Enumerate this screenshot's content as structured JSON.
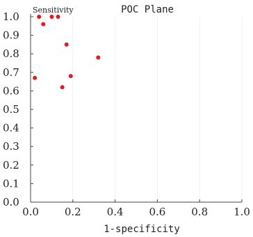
{
  "chart_data": {
    "type": "scatter",
    "title": "POC Plane",
    "xlabel": "1-specificity",
    "ylabel": "Sensitivity",
    "xlim": [
      0,
      1
    ],
    "ylim": [
      0,
      1
    ],
    "x_ticks": [
      "0.0",
      "0.2",
      "0.4",
      "0.6",
      "0.8",
      "1.0"
    ],
    "y_ticks": [
      "0.0",
      "0.1",
      "0.2",
      "0.3",
      "0.4",
      "0.5",
      "0.6",
      "0.7",
      "0.8",
      "0.9",
      "1.0"
    ],
    "grid": true,
    "point_color": "#e8191c",
    "points": [
      {
        "x": 0.04,
        "y": 1.0
      },
      {
        "x": 0.1,
        "y": 1.0
      },
      {
        "x": 0.13,
        "y": 1.0
      },
      {
        "x": 0.06,
        "y": 0.96
      },
      {
        "x": 0.17,
        "y": 0.85
      },
      {
        "x": 0.32,
        "y": 0.78
      },
      {
        "x": 0.02,
        "y": 0.67
      },
      {
        "x": 0.19,
        "y": 0.68
      },
      {
        "x": 0.15,
        "y": 0.62
      }
    ]
  }
}
